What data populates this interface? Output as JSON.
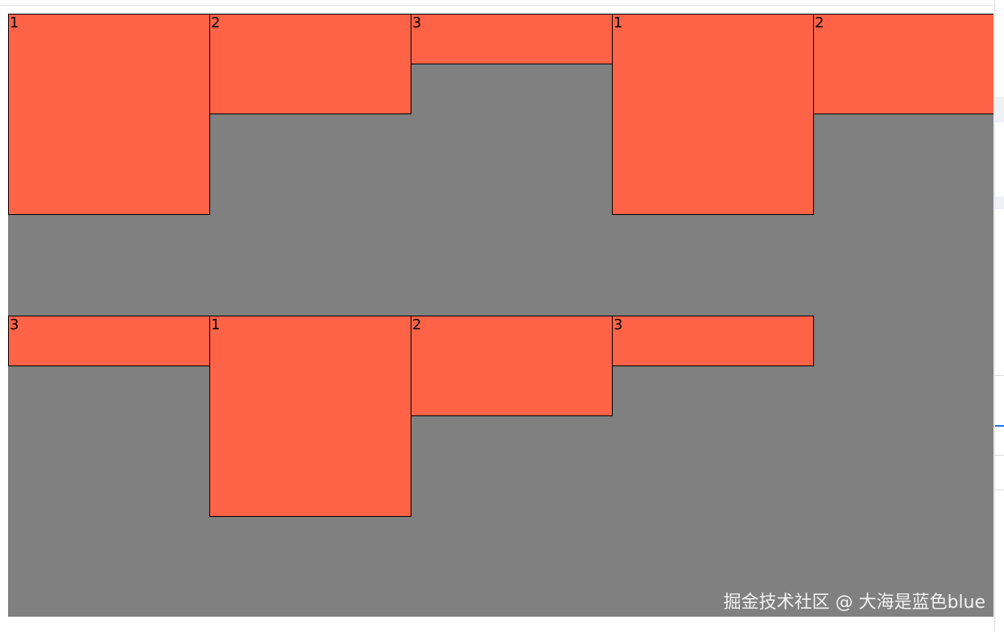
{
  "boxes_row1": [
    "1",
    "2",
    "3",
    "1",
    "2"
  ],
  "boxes_row2": [
    "3",
    "1",
    "2",
    "3"
  ],
  "watermark": "掘金技术社区 @ 大海是蓝色blue",
  "colors": {
    "box": "#ff6347",
    "container": "#808080",
    "border": "#000000"
  }
}
